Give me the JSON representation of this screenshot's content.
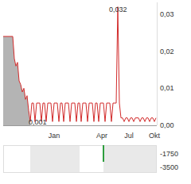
{
  "chart_data": [
    {
      "type": "line",
      "categories": [
        null,
        null,
        null,
        null,
        null,
        null,
        null,
        null,
        null,
        null,
        null,
        null,
        null,
        null,
        null,
        null,
        null,
        null,
        null,
        null,
        null,
        null,
        null,
        null,
        null,
        null,
        null,
        null,
        null,
        null,
        null,
        null,
        "Jan",
        null,
        null,
        null,
        null,
        null,
        null,
        null,
        null,
        null,
        null,
        null,
        null,
        null,
        null,
        null,
        null,
        null,
        null,
        null,
        null,
        null,
        null,
        null,
        null,
        null,
        null,
        null,
        null,
        null,
        "Apr",
        null,
        null,
        null,
        null,
        null,
        null,
        null,
        null,
        null,
        null,
        null,
        null,
        null,
        null,
        null,
        null,
        "Jul",
        null,
        null,
        null,
        null,
        null,
        null,
        null,
        null,
        null,
        null,
        null,
        null,
        null,
        null,
        null,
        "Okt",
        null
      ],
      "series": [
        {
          "type": "area",
          "color": "#b4b4b4",
          "values": [
            0.024,
            0.024,
            0.024,
            0.024,
            0.024,
            0.024,
            0.024,
            0.018,
            0.016,
            0.017,
            0.012,
            0.011,
            0.009,
            0.01,
            0.007,
            0.008,
            0.004,
            0.001,
            null,
            null,
            null,
            null,
            null,
            null,
            null,
            null,
            null,
            null,
            null,
            null,
            null,
            null,
            null,
            null,
            null,
            null,
            null,
            null,
            null,
            null,
            null,
            null,
            null,
            null,
            null,
            null,
            null,
            null,
            null,
            null,
            null,
            null,
            null,
            null,
            null,
            null,
            null,
            null,
            null,
            null,
            null,
            null,
            null,
            null,
            null,
            null,
            null,
            null,
            null,
            null,
            null,
            null,
            null,
            null,
            null,
            null,
            null,
            null,
            null,
            null,
            null,
            null,
            null,
            null,
            null,
            null,
            null,
            null,
            null,
            null,
            null,
            null,
            null,
            null,
            null,
            null,
            null
          ]
        },
        {
          "type": "line",
          "color": "#d22b2b",
          "values": [
            0.024,
            0.024,
            0.024,
            0.024,
            0.024,
            0.024,
            0.024,
            0.018,
            0.016,
            0.017,
            0.012,
            0.011,
            0.009,
            0.01,
            0.007,
            0.008,
            0.004,
            0.001,
            0.006,
            0.006,
            0.001,
            0.006,
            0.006,
            0.006,
            0.001,
            0.006,
            0.006,
            0.001,
            0.006,
            0.006,
            0.006,
            0.001,
            0.006,
            0.006,
            0.006,
            0.001,
            0.006,
            0.006,
            0.001,
            0.006,
            0.006,
            0.006,
            0.001,
            0.006,
            0.006,
            0.006,
            0.001,
            0.006,
            0.006,
            0.001,
            0.006,
            0.006,
            0.006,
            0.001,
            0.006,
            0.006,
            0.006,
            0.001,
            0.006,
            0.006,
            0.001,
            0.006,
            0.006,
            0.006,
            0.001,
            0.006,
            0.006,
            0.006,
            0.001,
            0.006,
            0.006,
            0.006,
            0.032,
            0.006,
            0.002,
            0.002,
            0.001,
            0.002,
            0.002,
            0.001,
            0.002,
            0.002,
            0.001,
            0.002,
            0.002,
            0.002,
            0.001,
            0.002,
            0.002,
            0.001,
            0.002,
            0.002,
            0.001,
            0.002,
            0.002,
            0.001,
            0.002
          ]
        }
      ],
      "annotations": [
        "0,032",
        "0,001"
      ],
      "ylim": [
        0,
        0.0332
      ],
      "yticks": [
        {
          "value": 0,
          "label": "0,00"
        },
        {
          "value": 0.01,
          "label": "0,01"
        },
        {
          "value": 0.02,
          "label": "0,02"
        },
        {
          "value": 0.03,
          "label": "0,03"
        }
      ],
      "grid": false
    },
    {
      "type": "bar",
      "color": "#2e9e3e",
      "values": [
        null,
        null,
        null,
        null,
        null,
        null,
        null,
        null,
        null,
        null,
        null,
        null,
        null,
        null,
        null,
        null,
        null,
        null,
        null,
        null,
        null,
        null,
        null,
        null,
        null,
        null,
        null,
        null,
        null,
        null,
        null,
        null,
        null,
        null,
        null,
        null,
        null,
        null,
        null,
        null,
        null,
        null,
        null,
        null,
        null,
        null,
        null,
        null,
        null,
        null,
        null,
        null,
        null,
        null,
        null,
        null,
        null,
        null,
        null,
        null,
        null,
        null,
        null,
        -2800,
        null,
        null,
        null,
        null,
        null,
        null,
        null,
        null,
        null,
        null,
        null,
        null,
        null,
        null,
        null,
        null,
        null,
        null,
        null,
        null,
        null,
        null,
        null,
        null,
        null,
        null,
        null,
        null,
        null,
        null,
        null,
        null,
        null
      ],
      "ylim": [
        -4200,
        -700
      ],
      "yticks": [
        -3500,
        -1750
      ],
      "grid": false
    }
  ]
}
